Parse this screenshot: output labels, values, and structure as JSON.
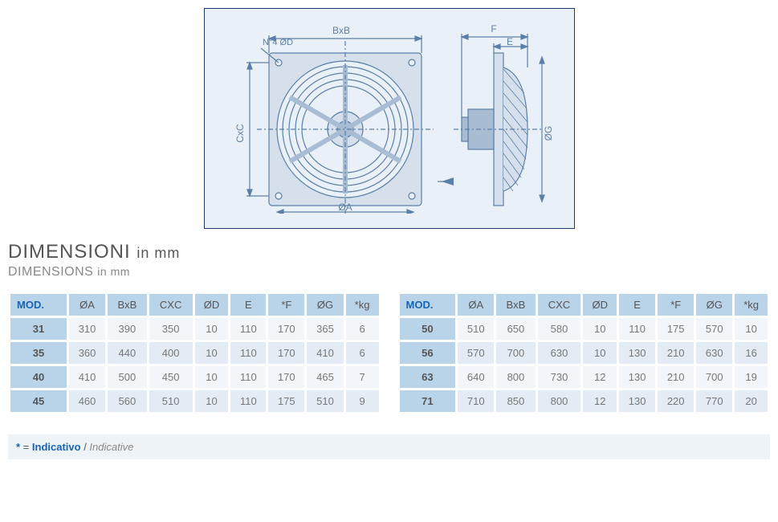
{
  "diagram": {
    "labels": {
      "bxb": "BxB",
      "cxc": "CxC",
      "n4d": "N°4 ØD",
      "e": "E",
      "f": "F",
      "oa": "ØA",
      "og": "ØG"
    },
    "colors": {
      "border": "#1a3a6e",
      "bg": "#eaf0f7",
      "stroke": "#5a7fa8",
      "fill_light": "#d5e0ec",
      "fill_mid": "#a8bdd4"
    }
  },
  "titles": {
    "main": "DIMENSIONI",
    "main_unit": "in mm",
    "sub": "DIMENSIONS",
    "sub_unit": "in mm"
  },
  "columns": [
    "MOD.",
    "ØA",
    "BxB",
    "CXC",
    "ØD",
    "E",
    "*F",
    "ØG",
    "*kg"
  ],
  "table_left": [
    [
      "31",
      "310",
      "390",
      "350",
      "10",
      "110",
      "170",
      "365",
      "6"
    ],
    [
      "35",
      "360",
      "440",
      "400",
      "10",
      "110",
      "170",
      "410",
      "6"
    ],
    [
      "40",
      "410",
      "500",
      "450",
      "10",
      "110",
      "170",
      "465",
      "7"
    ],
    [
      "45",
      "460",
      "560",
      "510",
      "10",
      "110",
      "175",
      "510",
      "9"
    ]
  ],
  "table_right": [
    [
      "50",
      "510",
      "650",
      "580",
      "10",
      "110",
      "175",
      "570",
      "10"
    ],
    [
      "56",
      "570",
      "700",
      "630",
      "10",
      "130",
      "210",
      "630",
      "16"
    ],
    [
      "63",
      "640",
      "800",
      "730",
      "12",
      "130",
      "210",
      "700",
      "19"
    ],
    [
      "71",
      "710",
      "850",
      "800",
      "12",
      "130",
      "220",
      "770",
      "20"
    ]
  ],
  "footnote": {
    "star": "*",
    "eq": " = ",
    "primary": "Indicativo",
    "sep": " / ",
    "secondary": "Indicative"
  },
  "styling": {
    "header_bg": "#b9d3e8",
    "row_odd_bg": "#f2f6fa",
    "row_even_bg": "#e3ecf4",
    "mod_color": "#1565b8",
    "foot_bg": "#eef3f8"
  }
}
